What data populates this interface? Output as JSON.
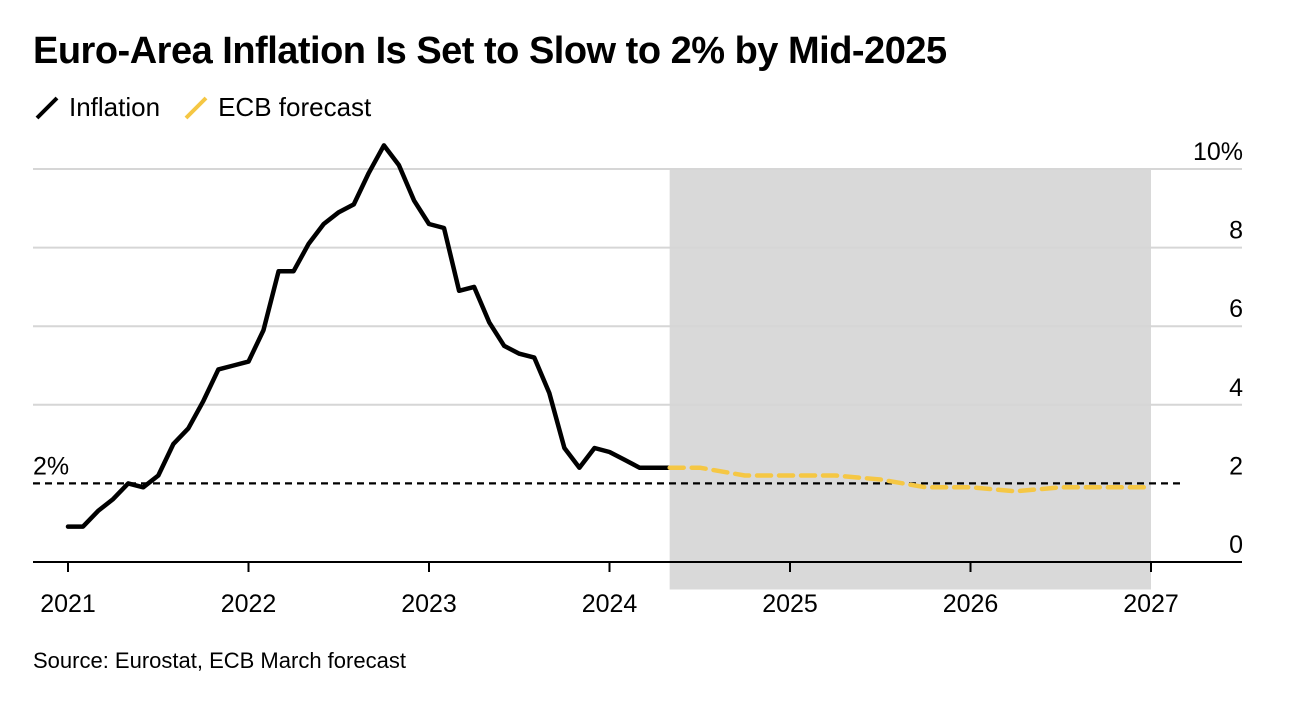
{
  "title": "Euro-Area Inflation Is Set to Slow to 2% by Mid-2025",
  "source": "Source: Eurostat, ECB March forecast",
  "legend": [
    {
      "name": "Inflation",
      "color": "#000000"
    },
    {
      "name": "ECB forecast",
      "color": "#f5c744"
    }
  ],
  "reference_line": {
    "value": 2,
    "label": "2%"
  },
  "colors": {
    "inflation": "#000000",
    "forecast": "#f5c744",
    "shade": "#d9d9d9",
    "grid": "#d6d6d6"
  },
  "chart_data": {
    "type": "line",
    "title": "Euro-Area Inflation Is Set to Slow to 2% by Mid-2025",
    "xlabel": "",
    "ylabel": "",
    "x_tick_labels": [
      "2021",
      "2022",
      "2023",
      "2024",
      "2025",
      "2026",
      "2027"
    ],
    "y_tick_labels": [
      "0",
      "2",
      "4",
      "6",
      "8",
      "10%"
    ],
    "y_ticks": [
      0,
      2,
      4,
      6,
      8,
      10
    ],
    "xlim": [
      "2020-11",
      "2027-04"
    ],
    "ylim": [
      -0.7,
      10
    ],
    "grid": true,
    "y_axis_side": "right",
    "legend_position": "top-left",
    "shaded_period": [
      "2024-05",
      "2027-01"
    ],
    "series": [
      {
        "name": "Inflation",
        "x": [
          "2021-01",
          "2021-02",
          "2021-03",
          "2021-04",
          "2021-05",
          "2021-06",
          "2021-07",
          "2021-08",
          "2021-09",
          "2021-10",
          "2021-11",
          "2021-12",
          "2022-01",
          "2022-02",
          "2022-03",
          "2022-04",
          "2022-05",
          "2022-06",
          "2022-07",
          "2022-08",
          "2022-09",
          "2022-10",
          "2022-11",
          "2022-12",
          "2023-01",
          "2023-02",
          "2023-03",
          "2023-04",
          "2023-05",
          "2023-06",
          "2023-07",
          "2023-08",
          "2023-09",
          "2023-10",
          "2023-11",
          "2023-12",
          "2024-01",
          "2024-02",
          "2024-03",
          "2024-04",
          "2024-05"
        ],
        "values": [
          0.9,
          0.9,
          1.3,
          1.6,
          2.0,
          1.9,
          2.2,
          3.0,
          3.4,
          4.1,
          4.9,
          5.0,
          5.1,
          5.9,
          7.4,
          7.4,
          8.1,
          8.6,
          8.9,
          9.1,
          9.9,
          10.6,
          10.1,
          9.2,
          8.6,
          8.5,
          6.9,
          7.0,
          6.1,
          5.5,
          5.3,
          5.2,
          4.3,
          2.9,
          2.4,
          2.9,
          2.8,
          2.6,
          2.4,
          2.4,
          2.4
        ]
      },
      {
        "name": "ECB forecast",
        "x": [
          "2024-05",
          "2024-07",
          "2024-10",
          "2025-01",
          "2025-04",
          "2025-07",
          "2025-10",
          "2026-01",
          "2026-04",
          "2026-07",
          "2026-10",
          "2027-01"
        ],
        "values": [
          2.4,
          2.4,
          2.2,
          2.2,
          2.2,
          2.1,
          1.9,
          1.9,
          1.8,
          1.9,
          1.9,
          1.9
        ]
      }
    ]
  }
}
